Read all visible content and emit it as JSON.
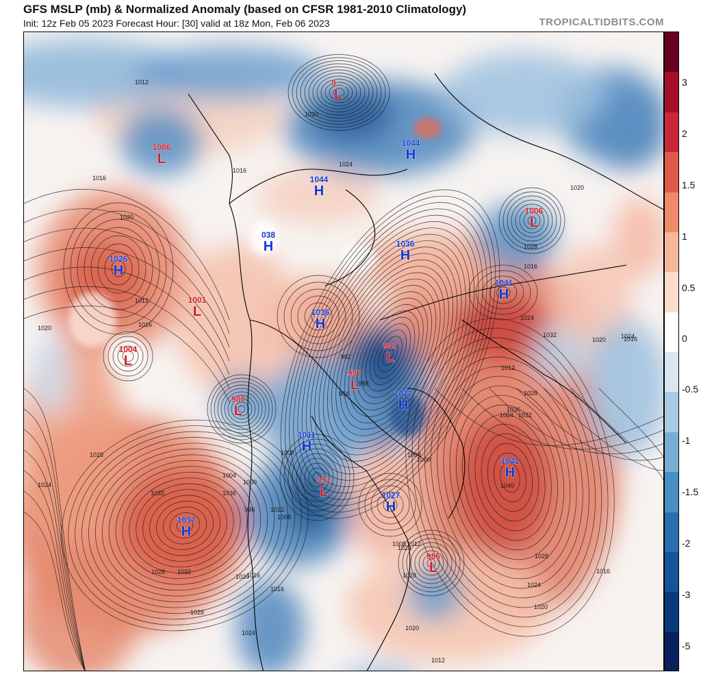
{
  "header": {
    "title": "GFS MSLP (mb) & Normalized Anomaly (based on CFSR 1981-2010 Climatology)",
    "subtitle": "Init: 12z Feb 05 2023   Forecast Hour: [30]   valid at 18z Mon, Feb 06 2023",
    "brand": "TROPICALTIDBITS.COM"
  },
  "colorbar": {
    "ticks": [
      "3",
      "2",
      "1.5",
      "1",
      "0.5",
      "0",
      "-0.5",
      "-1",
      "-1.5",
      "-2",
      "-3",
      "-5"
    ],
    "colors": [
      "#67001f",
      "#a50f2a",
      "#c9283a",
      "#de5a4c",
      "#ef8a6a",
      "#f6b79a",
      "#fbdccb",
      "#ffffff",
      "#d7e6f1",
      "#aacbe2",
      "#78aed3",
      "#4a8fc2",
      "#2a6fae",
      "#15539a",
      "#0b3a7c",
      "#08205c"
    ]
  },
  "map": {
    "pressure_systems": [
      {
        "type": "H",
        "value": "1026"
      },
      {
        "type": "L",
        "value": "1001"
      },
      {
        "type": "L",
        "value": "1004"
      },
      {
        "type": "L",
        "value": "1006"
      },
      {
        "type": "L",
        "value": "9__"
      },
      {
        "type": "H",
        "value": "1044"
      },
      {
        "type": "H",
        "value": "1044"
      },
      {
        "type": "H",
        "value": "038"
      },
      {
        "type": "H",
        "value": "1036"
      },
      {
        "type": "L",
        "value": "1006"
      },
      {
        "type": "H",
        "value": "1041"
      },
      {
        "type": "H",
        "value": "1036"
      },
      {
        "type": "L",
        "value": "947"
      },
      {
        "type": "L",
        "value": "987"
      },
      {
        "type": "H",
        "value": "1017"
      },
      {
        "type": "L",
        "value": "980"
      },
      {
        "type": "H",
        "value": "1011"
      },
      {
        "type": "L",
        "value": "991"
      },
      {
        "type": "H",
        "value": "1027"
      },
      {
        "type": "L",
        "value": "986"
      },
      {
        "type": "H",
        "value": "1041"
      },
      {
        "type": "H",
        "value": "1037"
      }
    ],
    "isobar_labels": [
      "1012",
      "1016",
      "1020",
      "1016",
      "1024",
      "1020",
      "1012",
      "1016",
      "1020",
      "1024",
      "1028",
      "1032",
      "1036",
      "1028",
      "1040",
      "1028",
      "1024",
      "1020",
      "1016",
      "1024",
      "1028",
      "1032",
      "1024",
      "1012",
      "1016",
      "1028",
      "1020",
      "1024",
      "1032",
      "1028",
      "1024",
      "1020",
      "1016",
      "1008",
      "1004",
      "1000",
      "996",
      "992",
      "988",
      "984",
      "1008",
      "1012",
      "1016",
      "1020",
      "1004",
      "1000",
      "1012",
      "1008",
      "1024",
      "1028",
      "1036",
      "1032",
      "1020",
      "1016",
      "1012"
    ]
  }
}
